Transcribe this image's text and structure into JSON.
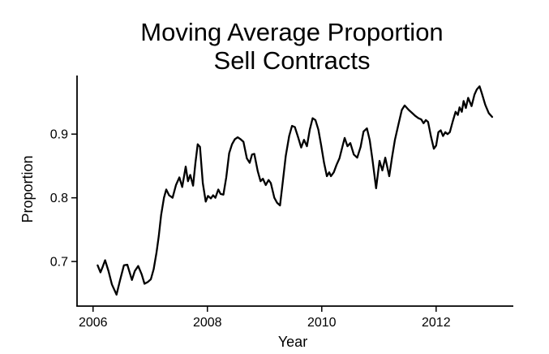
{
  "chart": {
    "title_line1": "Moving Average Proportion",
    "title_line2": "Sell Contracts",
    "xlabel": "Year",
    "ylabel": "Proportion"
  },
  "chart_data": {
    "type": "line",
    "title": "Moving Average Proportion Sell Contracts",
    "xlabel": "Year",
    "ylabel": "Proportion",
    "xlim": [
      2005.72,
      2013.35
    ],
    "ylim": [
      0.63,
      0.992
    ],
    "xticks": [
      2006,
      2008,
      2010,
      2012
    ],
    "yticks": [
      0.7,
      0.8,
      0.9
    ],
    "grid": false,
    "legend_position": "none",
    "line_color": "#000000",
    "background_color": "#ffffff",
    "series": [
      {
        "name": "Moving average proportion of sell contracts",
        "x": [
          2006.08,
          2006.13,
          2006.17,
          2006.21,
          2006.27,
          2006.33,
          2006.41,
          2006.47,
          2006.54,
          2006.6,
          2006.68,
          2006.73,
          2006.79,
          2006.85,
          2006.9,
          2006.96,
          2007.01,
          2007.06,
          2007.11,
          2007.15,
          2007.19,
          2007.24,
          2007.28,
          2007.33,
          2007.39,
          2007.45,
          2007.51,
          2007.56,
          2007.62,
          2007.66,
          2007.7,
          2007.75,
          2007.79,
          2007.83,
          2007.87,
          2007.92,
          2007.97,
          2008.01,
          2008.06,
          2008.1,
          2008.14,
          2008.19,
          2008.23,
          2008.28,
          2008.33,
          2008.38,
          2008.43,
          2008.48,
          2008.53,
          2008.58,
          2008.63,
          2008.69,
          2008.74,
          2008.78,
          2008.82,
          2008.88,
          2008.93,
          2008.97,
          2009.02,
          2009.07,
          2009.11,
          2009.17,
          2009.22,
          2009.27,
          2009.32,
          2009.37,
          2009.43,
          2009.48,
          2009.53,
          2009.59,
          2009.64,
          2009.69,
          2009.74,
          2009.79,
          2009.84,
          2009.89,
          2009.94,
          2009.99,
          2010.04,
          2010.09,
          2010.13,
          2010.16,
          2010.21,
          2010.26,
          2010.31,
          2010.36,
          2010.4,
          2010.45,
          2010.5,
          2010.56,
          2010.62,
          2010.68,
          2010.73,
          2010.79,
          2010.84,
          2010.89,
          2010.95,
          2011.01,
          2011.06,
          2011.11,
          2011.18,
          2011.23,
          2011.28,
          2011.34,
          2011.4,
          2011.45,
          2011.52,
          2011.57,
          2011.63,
          2011.69,
          2011.74,
          2011.78,
          2011.82,
          2011.86,
          2011.91,
          2011.96,
          2012.0,
          2012.04,
          2012.08,
          2012.12,
          2012.16,
          2012.2,
          2012.24,
          2012.29,
          2012.34,
          2012.38,
          2012.41,
          2012.45,
          2012.48,
          2012.52,
          2012.56,
          2012.62,
          2012.67,
          2012.71,
          2012.76,
          2012.8,
          2012.86,
          2012.92,
          2012.98
        ],
        "y": [
          0.694,
          0.683,
          0.692,
          0.702,
          0.685,
          0.664,
          0.648,
          0.67,
          0.694,
          0.695,
          0.671,
          0.685,
          0.693,
          0.68,
          0.665,
          0.668,
          0.672,
          0.688,
          0.714,
          0.74,
          0.773,
          0.8,
          0.813,
          0.804,
          0.8,
          0.82,
          0.832,
          0.817,
          0.849,
          0.826,
          0.836,
          0.819,
          0.855,
          0.884,
          0.88,
          0.823,
          0.794,
          0.803,
          0.799,
          0.804,
          0.8,
          0.813,
          0.806,
          0.805,
          0.832,
          0.87,
          0.884,
          0.892,
          0.895,
          0.892,
          0.888,
          0.862,
          0.855,
          0.868,
          0.869,
          0.842,
          0.826,
          0.83,
          0.82,
          0.828,
          0.823,
          0.8,
          0.792,
          0.788,
          0.826,
          0.866,
          0.897,
          0.913,
          0.911,
          0.894,
          0.879,
          0.891,
          0.881,
          0.907,
          0.925,
          0.922,
          0.907,
          0.882,
          0.855,
          0.834,
          0.84,
          0.834,
          0.84,
          0.852,
          0.862,
          0.88,
          0.894,
          0.881,
          0.886,
          0.868,
          0.863,
          0.88,
          0.904,
          0.909,
          0.89,
          0.858,
          0.815,
          0.858,
          0.843,
          0.863,
          0.834,
          0.864,
          0.891,
          0.915,
          0.938,
          0.945,
          0.938,
          0.934,
          0.929,
          0.925,
          0.923,
          0.917,
          0.922,
          0.919,
          0.896,
          0.877,
          0.882,
          0.903,
          0.906,
          0.897,
          0.903,
          0.9,
          0.903,
          0.92,
          0.935,
          0.93,
          0.942,
          0.935,
          0.952,
          0.941,
          0.957,
          0.944,
          0.962,
          0.97,
          0.975,
          0.964,
          0.946,
          0.933,
          0.927
        ]
      }
    ]
  }
}
